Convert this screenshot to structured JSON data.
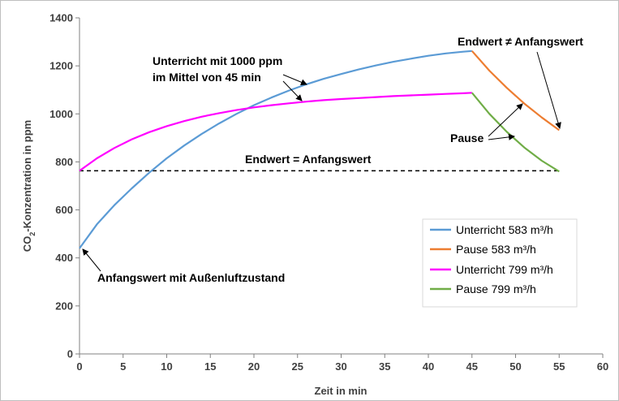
{
  "chart_data": {
    "type": "line",
    "xlabel": "Zeit in min",
    "ylabel_parts": [
      "CO",
      "2",
      "-Konzentration  in ppm"
    ],
    "xlim": [
      0,
      60
    ],
    "ylim": [
      0,
      1400
    ],
    "xticks": [
      0,
      5,
      10,
      15,
      20,
      25,
      30,
      35,
      40,
      45,
      50,
      55,
      60
    ],
    "yticks": [
      0,
      200,
      400,
      600,
      800,
      1000,
      1200,
      1400
    ],
    "grid": false,
    "legend_position": "bottom-right",
    "series": [
      {
        "name": "Unterricht 583 m³/h",
        "color": "#5b9bd5",
        "x": [
          0,
          2,
          4,
          6,
          8,
          10,
          12,
          14,
          16,
          18,
          20,
          22,
          24,
          26,
          28,
          30,
          32,
          34,
          36,
          38,
          40,
          42,
          44,
          45
        ],
        "y": [
          440,
          540,
          620,
          690,
          755,
          815,
          868,
          916,
          960,
          1000,
          1036,
          1068,
          1097,
          1123,
          1146,
          1166,
          1185,
          1202,
          1217,
          1230,
          1242,
          1252,
          1259,
          1262
        ]
      },
      {
        "name": "Pause 583 m³/h",
        "color": "#ed7d31",
        "x": [
          45,
          47,
          49,
          51,
          53,
          55
        ],
        "y": [
          1262,
          1180,
          1108,
          1043,
          985,
          932
        ]
      },
      {
        "name": "Unterricht 799 m³/h",
        "color": "#ff00ff",
        "x": [
          0,
          2,
          4,
          6,
          8,
          10,
          12,
          14,
          16,
          18,
          20,
          22,
          24,
          26,
          28,
          30,
          32,
          34,
          36,
          38,
          40,
          42,
          44,
          45
        ],
        "y": [
          763,
          815,
          858,
          894,
          924,
          949,
          970,
          988,
          1003,
          1016,
          1027,
          1036,
          1044,
          1051,
          1057,
          1062,
          1066,
          1070,
          1074,
          1077,
          1080,
          1083,
          1086,
          1088
        ]
      },
      {
        "name": "Pause 799 m³/h",
        "color": "#70ad47",
        "x": [
          45,
          47,
          49,
          51,
          53,
          55
        ],
        "y": [
          1088,
          1000,
          925,
          860,
          805,
          760
        ]
      }
    ],
    "reference_line": {
      "y": 763,
      "x": [
        0,
        55
      ],
      "style": "dashed",
      "color": "#000000"
    },
    "annotations": [
      {
        "id": "anno-unterricht-1",
        "text": "Unterricht mit 1000 ppm"
      },
      {
        "id": "anno-unterricht-2",
        "text": "im Mittel von 45 min"
      },
      {
        "id": "anno-endwert-ne",
        "text": "Endwert ≠ Anfangswert"
      },
      {
        "id": "anno-pause",
        "text": "Pause"
      },
      {
        "id": "anno-endwert-eq",
        "text": "Endwert = Anfangswert"
      },
      {
        "id": "anno-anfangswert",
        "text": "Anfangswert mit Außenluftzustand"
      }
    ]
  }
}
